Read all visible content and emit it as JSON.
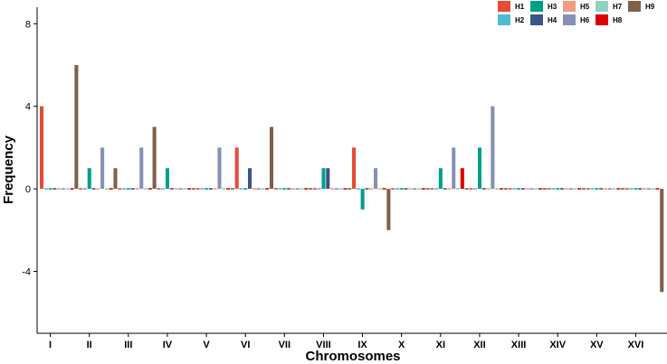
{
  "chart_data": {
    "type": "bar",
    "xlabel": "Chromosomes",
    "ylabel": "Frequency",
    "ylim": [
      -7,
      8.8
    ],
    "yticks": [
      -4,
      0,
      4,
      8
    ],
    "grid": false,
    "legend_position": "top-right",
    "categories": [
      "I",
      "II",
      "III",
      "IV",
      "V",
      "VI",
      "VII",
      "VIII",
      "IX",
      "X",
      "XI",
      "XII",
      "XIII",
      "XIV",
      "XV",
      "XVI"
    ],
    "series": [
      {
        "name": "H1",
        "color": "#E64B35",
        "values": [
          4,
          0,
          0,
          0,
          0,
          2,
          0,
          0,
          2,
          0,
          0,
          0,
          0,
          0,
          0,
          0
        ]
      },
      {
        "name": "H2",
        "color": "#4DBBD5",
        "values": [
          0,
          0,
          0,
          0,
          0,
          0,
          0,
          0,
          0,
          0,
          0,
          0,
          0,
          0,
          0,
          0
        ]
      },
      {
        "name": "H3",
        "color": "#00A087",
        "values": [
          0,
          1,
          0,
          1,
          0,
          0,
          0,
          1,
          -1,
          0,
          1,
          2,
          0,
          0,
          0,
          0
        ]
      },
      {
        "name": "H4",
        "color": "#3C5488",
        "values": [
          0,
          0,
          0,
          0,
          0,
          1,
          0,
          1,
          0,
          0,
          0,
          0,
          0,
          0,
          0,
          0
        ]
      },
      {
        "name": "H5",
        "color": "#F39B7F",
        "values": [
          0,
          0,
          0,
          0,
          0,
          0,
          0,
          0,
          0,
          0,
          0,
          0,
          0,
          0,
          0,
          0
        ]
      },
      {
        "name": "H6",
        "color": "#8491B4",
        "values": [
          0,
          2,
          2,
          0,
          2,
          0,
          0,
          0,
          1,
          0,
          2,
          4,
          0,
          0,
          0,
          0
        ]
      },
      {
        "name": "H7",
        "color": "#91D1C2",
        "values": [
          0,
          0,
          0,
          0,
          0,
          0,
          0,
          0,
          0,
          0,
          0,
          0,
          0,
          0,
          0,
          0
        ]
      },
      {
        "name": "H8",
        "color": "#DC0000",
        "values": [
          0,
          0,
          0,
          0,
          0,
          0,
          0,
          0,
          0,
          0,
          1,
          0,
          0,
          0,
          0,
          0
        ]
      },
      {
        "name": "H9",
        "color": "#7E6148",
        "values": [
          6,
          1,
          3,
          0,
          0,
          3,
          0,
          0,
          -2,
          0,
          0,
          0,
          0,
          0,
          0,
          -5
        ]
      }
    ]
  }
}
